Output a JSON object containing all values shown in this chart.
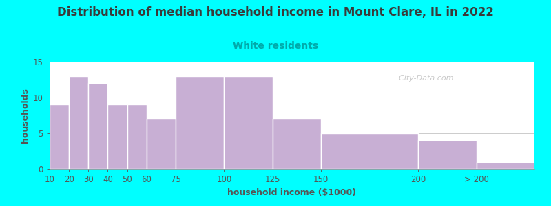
{
  "title": "Distribution of median household income in Mount Clare, IL in 2022",
  "subtitle": "White residents",
  "xlabel": "household income ($1000)",
  "ylabel": "households",
  "bar_labels": [
    "10",
    "20",
    "30",
    "40",
    "50",
    "60",
    "75",
    "100",
    "125",
    "150",
    "200",
    "> 200"
  ],
  "bar_values": [
    9,
    13,
    12,
    9,
    9,
    7,
    13,
    13,
    7,
    5,
    4,
    1
  ],
  "bar_color": "#c8afd4",
  "bar_edge_color": "#ffffff",
  "ylim": [
    0,
    15
  ],
  "yticks": [
    0,
    5,
    10,
    15
  ],
  "background_color": "#00ffff",
  "plot_bg_color_left": "#edf5e8",
  "plot_bg_color_right": "#ffffff",
  "title_color": "#3a3a3a",
  "subtitle_color": "#00aaaa",
  "axis_label_color": "#555555",
  "tick_color": "#555555",
  "watermark_text": "  City-Data.com",
  "title_fontsize": 12,
  "subtitle_fontsize": 10,
  "label_fontsize": 9,
  "tick_fontsize": 8.5
}
